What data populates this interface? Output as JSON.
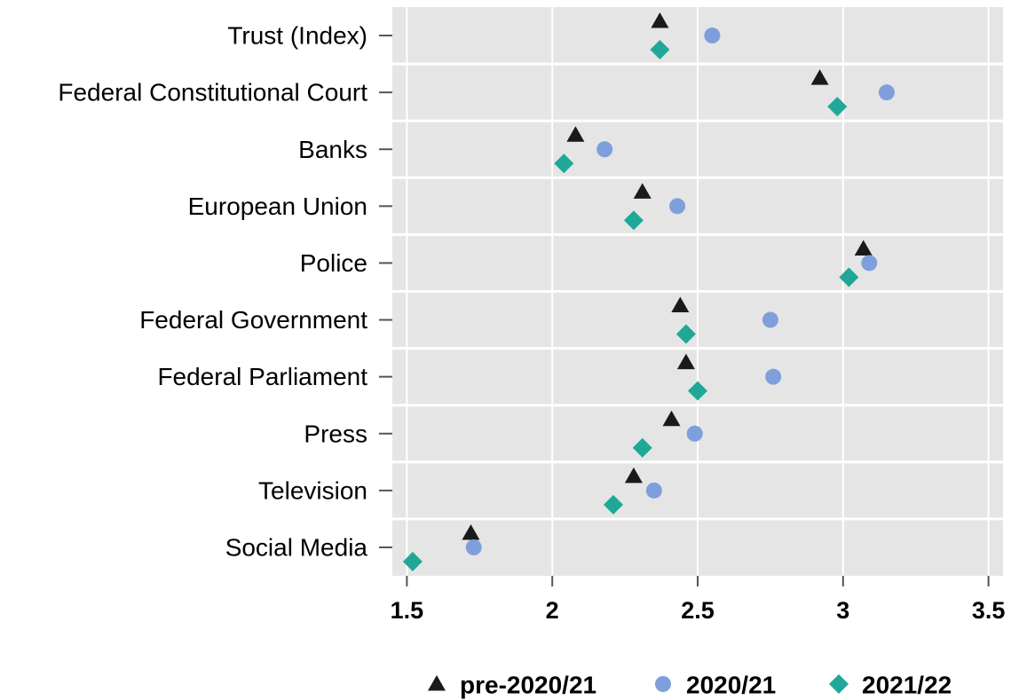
{
  "chart_data": {
    "type": "scatter",
    "orientation": "horizontal",
    "categories": [
      "Trust (Index)",
      "Federal Constitutional Court",
      "Banks",
      "European Union",
      "Police",
      "Federal Government",
      "Federal Parliament",
      "Press",
      "Television",
      "Social Media"
    ],
    "series": [
      {
        "name": "pre-2020/21",
        "marker": "triangle",
        "color": "#1a1a1a",
        "values": [
          2.37,
          2.92,
          2.08,
          2.31,
          3.07,
          2.44,
          2.46,
          2.41,
          2.28,
          1.72
        ]
      },
      {
        "name": "2020/21",
        "marker": "circle",
        "color": "#7f9fdc",
        "values": [
          2.55,
          3.15,
          2.18,
          2.43,
          3.09,
          2.75,
          2.76,
          2.49,
          2.35,
          1.73
        ]
      },
      {
        "name": "2021/22",
        "marker": "diamond",
        "color": "#1fa898",
        "values": [
          2.37,
          2.98,
          2.04,
          2.28,
          3.02,
          2.46,
          2.5,
          2.31,
          2.21,
          1.52
        ]
      }
    ],
    "xlim": [
      1.45,
      3.55
    ],
    "xticks": [
      1.5,
      2,
      2.5,
      3,
      3.5
    ],
    "xtick_labels": [
      "1.5",
      "2",
      "2.5",
      "3",
      "3.5"
    ],
    "grid": true,
    "legend_position": "bottom",
    "background": "#e5e5e5",
    "title": "",
    "xlabel": "",
    "ylabel": ""
  }
}
